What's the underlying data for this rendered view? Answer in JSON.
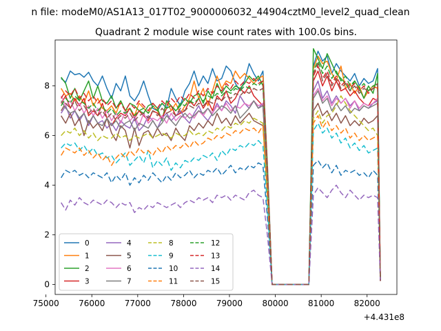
{
  "figure": {
    "suptitle": "n file: modeM0/AS1A13_017T02_9000006032_44904cztM0_level2_quad_clean",
    "title": "Quadrant 2 module wise count rates with 100.0s bins.",
    "offset_label": "+4.431e8"
  },
  "chart_data": {
    "type": "line",
    "xlim": [
      75200,
      82650
    ],
    "ylim": [
      -0.4,
      9.85
    ],
    "xticks": [
      75000,
      76000,
      77000,
      78000,
      79000,
      80000,
      81000,
      82000
    ],
    "xtick_labels": [
      "75000",
      "76000",
      "77000",
      "78000",
      "79000",
      "80000",
      "81000",
      "82000"
    ],
    "yticks": [
      0,
      2,
      4,
      6,
      8
    ],
    "ytick_labels": [
      "0",
      "2",
      "4",
      "6",
      "8"
    ],
    "grid": false,
    "legend_position": "lower-left",
    "legend_columns": 4,
    "gap": {
      "drop_start": 79830,
      "gap_start": 79930,
      "gap_end": 80730,
      "rise_end": 80830,
      "end_value": 0.15
    },
    "seg1": {
      "x_start": 75330,
      "x_end": 79730
    },
    "seg2": {
      "x_start": 80830,
      "x_end": 82230
    },
    "series": [
      {
        "name": "0",
        "color": "#1f77b4",
        "dash": "solid",
        "seg1": [
          8.3,
          8.15,
          8.6,
          8.45,
          8.5,
          8.35,
          8.55,
          8.2,
          8.0,
          8.4,
          7.9,
          7.5,
          8.1,
          7.8,
          8.4,
          7.6,
          7.4,
          7.7,
          8.2,
          7.6,
          7.1,
          7.0,
          7.3,
          7.1,
          7.9,
          7.5,
          7.2,
          7.8,
          8.1,
          8.6,
          8.0,
          8.4,
          8.1,
          8.7,
          8.2,
          8.3,
          8.8,
          8.6,
          8.1,
          7.8,
          8.2,
          8.9,
          8.5,
          8.2,
          8.6
        ],
        "seg2": [
          8.8,
          9.4,
          9.0,
          9.2,
          8.5,
          8.9,
          8.6,
          8.4,
          8.2,
          8.5,
          8.0,
          8.3,
          8.1,
          8.2,
          8.7
        ]
      },
      {
        "name": "1",
        "color": "#ff7f0e",
        "dash": "solid",
        "seg1": [
          7.9,
          7.6,
          7.7,
          7.4,
          7.6,
          7.3,
          7.8,
          7.2,
          7.5,
          7.1,
          7.0,
          7.2,
          6.9,
          7.4,
          7.0,
          7.1,
          6.8,
          7.3,
          7.1,
          6.9,
          7.2,
          7.0,
          6.6,
          7.4,
          7.0,
          7.3,
          6.9,
          7.2,
          7.5,
          8.2,
          7.5,
          7.9,
          7.2,
          7.8,
          8.4,
          7.9,
          8.2,
          8.1,
          8.6,
          8.3,
          8.5,
          8.3,
          8.1,
          8.3,
          8.4
        ],
        "seg2": [
          8.7,
          9.2,
          8.9,
          9.0,
          8.5,
          8.2,
          8.8,
          7.9,
          8.1,
          7.7,
          8.0,
          7.5,
          7.8,
          8.0,
          7.9
        ]
      },
      {
        "name": "2",
        "color": "#2ca02c",
        "dash": "solid",
        "seg1": [
          8.35,
          8.1,
          7.5,
          7.9,
          7.4,
          7.8,
          8.2,
          7.5,
          8.0,
          7.4,
          7.3,
          7.6,
          7.1,
          7.4,
          7.0,
          7.3,
          7.2,
          7.0,
          6.9,
          7.2,
          7.3,
          7.1,
          6.6,
          7.4,
          7.2,
          7.0,
          7.2,
          7.5,
          7.3,
          7.6,
          7.7,
          7.3,
          7.8,
          7.5,
          8.1,
          7.7,
          8.0,
          7.8,
          8.0,
          7.9,
          8.1,
          8.4,
          8.2,
          8.4,
          8.0
        ],
        "seg2": [
          9.5,
          9.1,
          8.7,
          9.3,
          8.9,
          8.5,
          8.3,
          8.1,
          7.8,
          8.2,
          7.9,
          7.5,
          8.0,
          7.7,
          8.5
        ]
      },
      {
        "name": "3",
        "color": "#d62728",
        "dash": "solid",
        "seg1": [
          7.3,
          7.6,
          7.1,
          7.5,
          7.2,
          7.5,
          6.8,
          7.0,
          6.8,
          7.3,
          6.7,
          6.4,
          6.7,
          6.9,
          6.8,
          7.1,
          6.7,
          7.0,
          6.8,
          6.6,
          7.0,
          6.9,
          6.7,
          7.1,
          7.2,
          6.8,
          6.9,
          7.0,
          7.4,
          7.2,
          7.5,
          7.1,
          7.4,
          7.0,
          7.6,
          7.4,
          7.8,
          7.3,
          7.5,
          7.9,
          7.7,
          8.0,
          7.6,
          7.4,
          7.2
        ],
        "seg2": [
          8.2,
          8.6,
          8.0,
          8.4,
          7.8,
          8.2,
          7.8,
          7.9,
          7.6,
          7.8,
          7.5,
          7.3,
          7.2,
          7.5,
          7.4
        ]
      },
      {
        "name": "4",
        "color": "#9467bd",
        "dash": "solid",
        "seg1": [
          6.9,
          7.2,
          6.7,
          7.0,
          6.6,
          6.9,
          6.4,
          6.8,
          6.5,
          6.6,
          6.3,
          6.5,
          6.2,
          6.6,
          6.4,
          6.3,
          6.7,
          6.2,
          6.4,
          6.8,
          6.6,
          6.3,
          6.7,
          6.9,
          6.6,
          6.8,
          7.0,
          6.7,
          6.5,
          6.9,
          7.2,
          6.8,
          6.6,
          6.9,
          7.3,
          7.0,
          7.4,
          7.2,
          6.9,
          7.6,
          7.3,
          7.1,
          7.4,
          7.1,
          7.3
        ],
        "seg2": [
          7.8,
          8.2,
          7.5,
          7.8,
          7.3,
          7.6,
          7.3,
          7.5,
          7.2,
          7.4,
          7.0,
          7.2,
          7.1,
          7.3,
          7.4
        ]
      },
      {
        "name": "5",
        "color": "#8c564b",
        "dash": "solid",
        "seg1": [
          6.8,
          6.5,
          6.9,
          6.4,
          6.7,
          6.0,
          6.6,
          6.3,
          6.5,
          6.2,
          6.7,
          6.1,
          5.8,
          6.4,
          6.2,
          5.5,
          6.3,
          5.6,
          6.1,
          6.2,
          5.9,
          6.3,
          6.0,
          6.1,
          5.8,
          6.3,
          6.0,
          5.8,
          6.4,
          6.2,
          6.5,
          6.3,
          6.6,
          6.4,
          6.9,
          6.5,
          6.7,
          6.4,
          6.8,
          6.5,
          6.7,
          6.9,
          6.6,
          6.5,
          6.4
        ],
        "seg2": [
          7.0,
          7.3,
          6.8,
          7.0,
          6.6,
          6.9,
          6.5,
          6.8,
          6.4,
          6.6,
          6.4,
          6.7,
          6.5,
          6.6,
          6.8
        ]
      },
      {
        "name": "6",
        "color": "#e377c2",
        "dash": "solid",
        "seg1": [
          7.6,
          7.2,
          7.4,
          7.0,
          7.3,
          6.9,
          7.2,
          6.8,
          7.1,
          6.7,
          7.0,
          6.6,
          6.9,
          6.5,
          7.0,
          6.6,
          6.8,
          6.4,
          6.9,
          6.5,
          6.7,
          6.6,
          6.8,
          6.5,
          6.9,
          6.6,
          6.8,
          6.7,
          6.9,
          6.7,
          7.0,
          6.8,
          7.1,
          6.9,
          7.2,
          7.0,
          7.3,
          7.0,
          7.2,
          7.1,
          7.3,
          7.2,
          7.4,
          7.2,
          7.3
        ],
        "seg2": [
          7.6,
          7.9,
          7.4,
          7.6,
          7.2,
          7.5,
          7.3,
          7.5,
          7.1,
          7.4,
          7.1,
          7.3,
          7.2,
          7.3,
          7.5
        ]
      },
      {
        "name": "7",
        "color": "#7f7f7f",
        "dash": "solid",
        "seg1": [
          7.4,
          7.1,
          6.9,
          7.0,
          6.7,
          6.9,
          6.5,
          6.8,
          6.5,
          6.4,
          6.7,
          6.4,
          6.6,
          6.3,
          6.5,
          6.6,
          6.2,
          6.5,
          6.4,
          6.3,
          6.6,
          6.3,
          6.5,
          6.8,
          6.6,
          6.4,
          6.7,
          6.9,
          6.7,
          6.8,
          7.0,
          6.9,
          7.1,
          6.8,
          7.0,
          7.2,
          7.1,
          6.9,
          7.2,
          6.7,
          6.9,
          7.1,
          7.4,
          7.1,
          7.2
        ],
        "seg2": [
          7.5,
          7.8,
          7.3,
          7.5,
          7.0,
          7.3,
          7.0,
          7.2,
          6.9,
          7.1,
          7.0,
          7.2,
          7.1,
          7.2,
          7.3
        ]
      },
      {
        "name": "8",
        "color": "#bcbd22",
        "dash": "8,4",
        "seg1": [
          6.0,
          6.2,
          6.1,
          6.3,
          6.0,
          6.2,
          5.9,
          6.1,
          5.8,
          6.0,
          5.9,
          5.9,
          6.1,
          5.9,
          6.0,
          5.8,
          6.0,
          5.9,
          6.0,
          6.1,
          5.9,
          6.0,
          6.1,
          6.0,
          5.9,
          6.1,
          6.0,
          6.0,
          6.2,
          6.0,
          6.1,
          6.0,
          6.2,
          6.1,
          6.3,
          6.2,
          6.4,
          6.3,
          6.5,
          6.4,
          6.6,
          6.5,
          6.7,
          6.6,
          6.5
        ],
        "seg2": [
          6.7,
          7.0,
          6.5,
          6.8,
          6.9,
          7.2,
          7.6,
          7.3,
          7.0,
          6.8,
          6.6,
          6.4,
          6.2,
          6.3,
          6.0
        ]
      },
      {
        "name": "9",
        "color": "#17becf",
        "dash": "8,4",
        "seg1": [
          5.5,
          5.7,
          5.6,
          5.7,
          5.4,
          5.6,
          5.3,
          5.5,
          5.2,
          5.3,
          5.1,
          5.2,
          4.9,
          5.1,
          5.3,
          4.8,
          5.0,
          5.2,
          4.9,
          5.4,
          4.7,
          5.0,
          4.8,
          5.1,
          4.6,
          4.9,
          4.7,
          5.0,
          4.9,
          5.1,
          5.0,
          5.2,
          5.1,
          5.3,
          5.0,
          5.4,
          5.2,
          5.5,
          5.4,
          5.6,
          5.5,
          5.7,
          5.6,
          5.8,
          5.6
        ],
        "seg2": [
          6.2,
          6.5,
          6.1,
          6.3,
          5.9,
          6.1,
          5.7,
          5.9,
          5.5,
          5.7,
          5.4,
          5.6,
          5.3,
          5.4,
          5.5
        ]
      },
      {
        "name": "10",
        "color": "#1f77b4",
        "dash": "8,4",
        "seg1": [
          4.3,
          4.6,
          4.5,
          4.6,
          4.4,
          4.5,
          4.3,
          4.5,
          4.4,
          4.3,
          4.5,
          4.1,
          4.4,
          4.2,
          4.5,
          4.0,
          4.3,
          4.1,
          4.4,
          4.2,
          4.5,
          4.3,
          4.1,
          4.4,
          4.2,
          4.5,
          4.3,
          4.4,
          4.6,
          4.3,
          4.5,
          4.4,
          4.6,
          4.5,
          4.7,
          4.4,
          4.6,
          4.8,
          4.5,
          4.7,
          4.6,
          4.8,
          4.7,
          4.9,
          4.8
        ],
        "seg2": [
          4.8,
          5.0,
          4.7,
          4.9,
          4.5,
          4.8,
          4.4,
          4.6,
          4.5,
          4.6,
          4.4,
          4.5,
          4.3,
          4.6,
          4.4
        ]
      },
      {
        "name": "11",
        "color": "#ff7f0e",
        "dash": "8,4",
        "seg1": [
          5.2,
          5.5,
          5.4,
          5.3,
          5.5,
          5.2,
          5.4,
          5.1,
          5.3,
          5.0,
          5.2,
          4.8,
          5.1,
          5.3,
          5.1,
          5.4,
          5.2,
          5.5,
          5.3,
          5.4,
          5.2,
          5.5,
          5.3,
          5.6,
          5.4,
          5.6,
          5.5,
          5.7,
          5.5,
          5.8,
          5.6,
          5.7,
          5.9,
          5.8,
          6.0,
          5.9,
          6.1,
          6.0,
          6.2,
          6.1,
          6.3,
          6.2,
          6.3,
          6.1,
          6.4
        ],
        "seg2": [
          6.5,
          6.8,
          6.3,
          6.6,
          6.2,
          6.4,
          6.1,
          6.3,
          5.9,
          6.1,
          5.8,
          6.0,
          5.8,
          5.9,
          6.0
        ]
      },
      {
        "name": "12",
        "color": "#2ca02c",
        "dash": "8,4",
        "seg1": [
          7.2,
          7.5,
          7.3,
          7.6,
          7.4,
          7.3,
          7.1,
          7.3,
          7.0,
          7.2,
          6.9,
          7.1,
          6.8,
          7.0,
          6.9,
          7.1,
          6.8,
          7.0,
          7.1,
          6.9,
          7.2,
          7.0,
          7.3,
          7.1,
          7.2,
          7.0,
          7.3,
          7.2,
          7.4,
          7.3,
          7.5,
          7.4,
          7.6,
          7.5,
          7.7,
          7.6,
          7.8,
          7.7,
          7.9,
          7.8,
          8.0,
          7.9,
          8.1,
          8.0,
          8.2
        ],
        "seg2": [
          8.6,
          9.0,
          8.5,
          8.8,
          8.3,
          8.6,
          8.2,
          8.4,
          8.0,
          8.2,
          7.9,
          8.1,
          7.8,
          8.0,
          8.1
        ]
      },
      {
        "name": "13",
        "color": "#d62728",
        "dash": "8,4",
        "seg1": [
          7.5,
          7.8,
          7.6,
          7.9,
          7.5,
          7.7,
          7.4,
          7.6,
          7.3,
          7.5,
          7.2,
          7.4,
          7.1,
          7.3,
          7.0,
          7.3,
          7.1,
          7.4,
          7.2,
          7.0,
          7.3,
          7.1,
          7.4,
          7.2,
          7.5,
          7.3,
          7.6,
          7.4,
          7.7,
          7.5,
          7.8,
          7.6,
          7.9,
          7.7,
          8.0,
          7.8,
          8.1,
          7.9,
          8.2,
          8.0,
          8.2,
          8.1,
          8.3,
          8.1,
          8.2
        ],
        "seg2": [
          8.4,
          8.8,
          8.3,
          8.6,
          8.1,
          8.4,
          8.0,
          8.2,
          7.9,
          8.1,
          7.8,
          8.0,
          7.7,
          7.9,
          8.0
        ]
      },
      {
        "name": "14",
        "color": "#9467bd",
        "dash": "8,4",
        "seg1": [
          3.3,
          3.0,
          3.4,
          3.2,
          3.5,
          3.3,
          3.2,
          3.4,
          3.3,
          3.2,
          3.4,
          3.3,
          3.1,
          3.3,
          3.2,
          3.3,
          2.9,
          3.1,
          3.0,
          3.2,
          3.1,
          3.3,
          3.2,
          3.1,
          3.2,
          3.3,
          3.1,
          3.3,
          3.4,
          3.3,
          3.5,
          3.4,
          3.5,
          3.3,
          3.6,
          3.5,
          3.6,
          3.4,
          3.6,
          3.5,
          3.4,
          3.7,
          3.8,
          3.6,
          3.5
        ],
        "seg2": [
          3.6,
          3.9,
          3.7,
          3.5,
          3.8,
          4.0,
          3.7,
          3.5,
          3.8,
          3.6,
          3.4,
          3.6,
          3.5,
          3.6,
          3.5
        ]
      },
      {
        "name": "15",
        "color": "#8c564b",
        "dash": "8,4",
        "seg1": [
          7.0,
          7.3,
          7.1,
          7.4,
          7.0,
          7.2,
          6.9,
          7.1,
          6.8,
          7.0,
          6.7,
          6.9,
          6.6,
          6.8,
          6.7,
          6.9,
          6.6,
          6.8,
          6.9,
          6.7,
          7.0,
          6.8,
          7.1,
          6.9,
          7.0,
          6.8,
          7.1,
          7.0,
          7.2,
          7.1,
          7.3,
          7.2,
          7.4,
          7.3,
          7.5,
          7.4,
          7.6,
          7.5,
          7.7,
          7.6,
          7.8,
          7.7,
          7.9,
          7.8,
          7.9
        ],
        "seg2": [
          8.5,
          8.9,
          8.2,
          8.5,
          8.0,
          8.3,
          7.9,
          8.1,
          7.8,
          8.0,
          7.7,
          7.9,
          7.8,
          7.9,
          8.1
        ]
      }
    ]
  }
}
